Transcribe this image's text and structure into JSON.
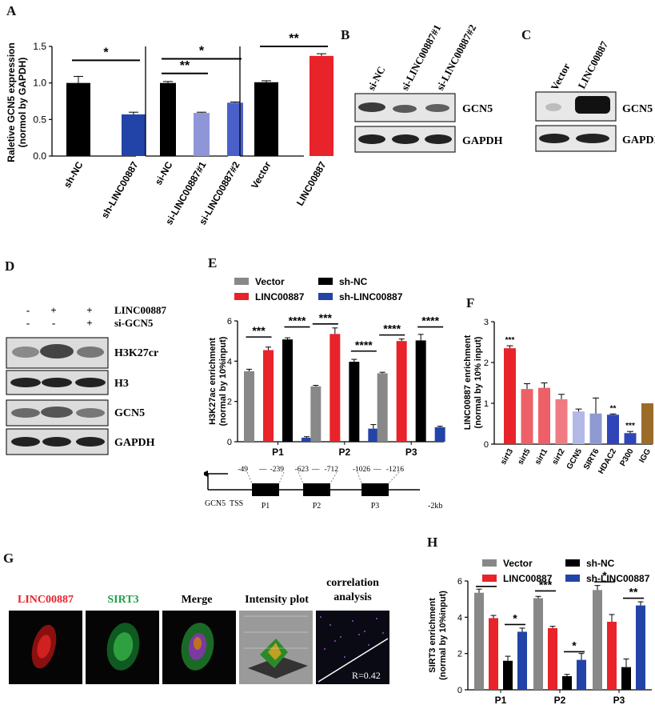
{
  "panel_letters": [
    "A",
    "B",
    "C",
    "D",
    "E",
    "F",
    "G",
    "H"
  ],
  "colors": {
    "black": "#000000",
    "blue": "#2244a8",
    "light_blue": "#8e96d8",
    "mid_blue": "#4a60c8",
    "red": "#e8232a",
    "gray": "#888888",
    "pink1": "#ee6068",
    "pink2": "#f07b82",
    "lavender": "#b3b8e6",
    "slate": "#8f99d2",
    "navy": "#2f45b8",
    "brown": "#9b6b2a"
  },
  "chart_data": [
    {
      "panel": "A",
      "type": "bar",
      "ylabel": "Raletive GCN5 expression\n(normol by GAPDH)",
      "ylim": [
        0,
        1.5
      ],
      "yticks": [
        "0.0",
        "0.5",
        "1.0",
        "1.5"
      ],
      "groups": [
        {
          "categories": [
            "sh-NC",
            "sh-LINC00887"
          ],
          "values": [
            1.0,
            0.57
          ],
          "errors": [
            0.09,
            0.03
          ],
          "colors": [
            "#000000",
            "#2244a8"
          ],
          "sig": [
            {
              "from": 0,
              "to": 1,
              "label": "*",
              "y": 1.31
            }
          ]
        },
        {
          "categories": [
            "si-NC",
            "si-LINC00887#1",
            "si-LINC00887#2"
          ],
          "values": [
            1.0,
            0.59,
            0.73
          ],
          "errors": [
            0.02,
            0.01,
            0.01
          ],
          "colors": [
            "#000000",
            "#8e96d8",
            "#4a60c8"
          ],
          "sig": [
            {
              "from": 0,
              "to": 1,
              "label": "**",
              "y": 1.13
            },
            {
              "from": 0,
              "to": 2,
              "label": "*",
              "y": 1.33
            }
          ]
        },
        {
          "categories": [
            "Vector",
            "LINC00887"
          ],
          "values": [
            1.01,
            1.37
          ],
          "errors": [
            0.02,
            0.03
          ],
          "colors": [
            "#000000",
            "#e8232a"
          ],
          "sig": [
            {
              "from": 0,
              "to": 1,
              "label": "**",
              "y": 1.5
            }
          ]
        }
      ]
    },
    {
      "panel": "E",
      "type": "bar",
      "ylabel": "H3K27ac enrichment\n(normal by 10%input)",
      "ylim": [
        0,
        6
      ],
      "yticks": [
        "0",
        "2",
        "4",
        "6"
      ],
      "categories": [
        "P1",
        "P2",
        "P3"
      ],
      "series": [
        {
          "name": "Vector",
          "color": "#888888",
          "values": [
            3.5,
            2.75,
            3.4
          ],
          "errors": [
            0.1,
            0.05,
            0.05
          ]
        },
        {
          "name": "LINC00887",
          "color": "#e8232a",
          "values": [
            4.55,
            5.35,
            5.0
          ],
          "errors": [
            0.15,
            0.3,
            0.1
          ]
        },
        {
          "name": "sh-NC",
          "color": "#000000",
          "values": [
            5.08,
            3.97,
            5.03
          ],
          "errors": [
            0.08,
            0.12,
            0.3
          ]
        },
        {
          "name": "sh-LINC00887",
          "color": "#2244a8",
          "values": [
            0.2,
            0.65,
            0.72
          ],
          "errors": [
            0.05,
            0.2,
            0.05
          ]
        }
      ],
      "sig": [
        {
          "cat": 0,
          "s1": 0,
          "s2": 1,
          "label": "***",
          "y": 5.2
        },
        {
          "cat": 0,
          "s1": 2,
          "s2": 3,
          "label": "****",
          "y": 5.7
        },
        {
          "cat": 1,
          "s1": 0,
          "s2": 1,
          "label": "***",
          "y": 5.85
        },
        {
          "cat": 1,
          "s1": 2,
          "s2": 3,
          "label": "****",
          "y": 4.5
        },
        {
          "cat": 2,
          "s1": 0,
          "s2": 1,
          "label": "****",
          "y": 5.3
        },
        {
          "cat": 2,
          "s1": 2,
          "s2": 3,
          "label": "****",
          "y": 5.7
        }
      ]
    },
    {
      "panel": "F",
      "type": "bar",
      "ylabel": "LINC00887 enrichment\n(normal by 10% input)",
      "ylim": [
        0,
        3
      ],
      "yticks": [
        "0",
        "1",
        "2",
        "3"
      ],
      "categories": [
        "sirt3",
        "sirt5",
        "sirt1",
        "sirt2",
        "GCN5",
        "SIRT6",
        "HDAC2",
        "P300",
        "IGG"
      ],
      "values": [
        2.35,
        1.35,
        1.38,
        1.1,
        0.8,
        0.75,
        0.72,
        0.27,
        1.0
      ],
      "errors": [
        0.06,
        0.13,
        0.12,
        0.12,
        0.06,
        0.38,
        0.02,
        0.04,
        0.0
      ],
      "colors": [
        "#e8232a",
        "#ee6068",
        "#ee6068",
        "#f07b82",
        "#b3b8e6",
        "#8f99d2",
        "#2f45b8",
        "#2f45b8",
        "#9b6b2a"
      ],
      "annotations": [
        {
          "index": 0,
          "label": "***"
        },
        {
          "index": 6,
          "label": "**"
        },
        {
          "index": 7,
          "label": "***"
        }
      ]
    },
    {
      "panel": "H",
      "type": "bar",
      "ylabel": "SIRT3 enrichment\n(normal by 10%input)",
      "ylim": [
        0,
        6
      ],
      "yticks": [
        "0",
        "2",
        "4",
        "6"
      ],
      "categories": [
        "P1",
        "P2",
        "P3"
      ],
      "series": [
        {
          "name": "Vector",
          "color": "#888888",
          "values": [
            5.35,
            5.05,
            5.5
          ],
          "errors": [
            0.2,
            0.1,
            0.25
          ]
        },
        {
          "name": "LINC00887",
          "color": "#e8232a",
          "values": [
            3.95,
            3.4,
            3.75
          ],
          "errors": [
            0.15,
            0.1,
            0.4
          ]
        },
        {
          "name": "sh-NC",
          "color": "#000000",
          "values": [
            1.6,
            0.75,
            1.25
          ],
          "errors": [
            0.25,
            0.1,
            0.45
          ]
        },
        {
          "name": "sh-LINC00887",
          "color": "#2244a8",
          "values": [
            3.2,
            1.65,
            4.65
          ],
          "errors": [
            0.2,
            0.35,
            0.2
          ]
        }
      ],
      "sig": [
        {
          "cat": 0,
          "s1": 0,
          "s2": 1,
          "label": "*",
          "y": 5.7
        },
        {
          "cat": 0,
          "s1": 2,
          "s2": 3,
          "label": "*",
          "y": 3.6
        },
        {
          "cat": 1,
          "s1": 0,
          "s2": 1,
          "label": "***",
          "y": 5.45
        },
        {
          "cat": 1,
          "s1": 2,
          "s2": 3,
          "label": "*",
          "y": 2.1
        },
        {
          "cat": 2,
          "s1": 0,
          "s2": 1,
          "label": "*",
          "y": 5.95
        },
        {
          "cat": 2,
          "s1": 2,
          "s2": 3,
          "label": "**",
          "y": 5.05
        }
      ]
    }
  ],
  "panel_b": {
    "lanes": [
      "si-NC",
      "si-LINC00887#1",
      "si-LINC00887#2"
    ],
    "rows": [
      "GCN5",
      "GAPDH"
    ]
  },
  "panel_c": {
    "lanes": [
      "Vector",
      "LINC00887"
    ],
    "rows": [
      "GCN5",
      "GAPDH"
    ]
  },
  "panel_d": {
    "condition_rows": [
      {
        "label": "LINC00887",
        "marks": [
          "-",
          "+",
          "+"
        ]
      },
      {
        "label": "si-GCN5",
        "marks": [
          "-",
          "-",
          "+"
        ]
      }
    ],
    "rows": [
      "H3K27cr",
      "H3",
      "GCN5",
      "GAPDH"
    ]
  },
  "panel_e_map": {
    "regions": [
      {
        "label": "P1",
        "range": [
          "-49",
          "-239"
        ]
      },
      {
        "label": "P2",
        "range": [
          "-623",
          "-712"
        ]
      },
      {
        "label": "P3",
        "range": [
          "-1026",
          "-1216"
        ]
      }
    ],
    "gene": "GCN5",
    "tss": "TSS",
    "end": "-2kb"
  },
  "panel_g": {
    "titles": [
      {
        "text": "LINC00887",
        "color": "#e8232a"
      },
      {
        "text": "SIRT3",
        "color": "#22a04a"
      },
      {
        "text": "Merge",
        "color": "#111111"
      },
      {
        "text": "Intensity plot",
        "color": "#111111"
      }
    ],
    "correlation_title": [
      "correlation",
      "analysis"
    ],
    "r_value": "R=0.42"
  }
}
